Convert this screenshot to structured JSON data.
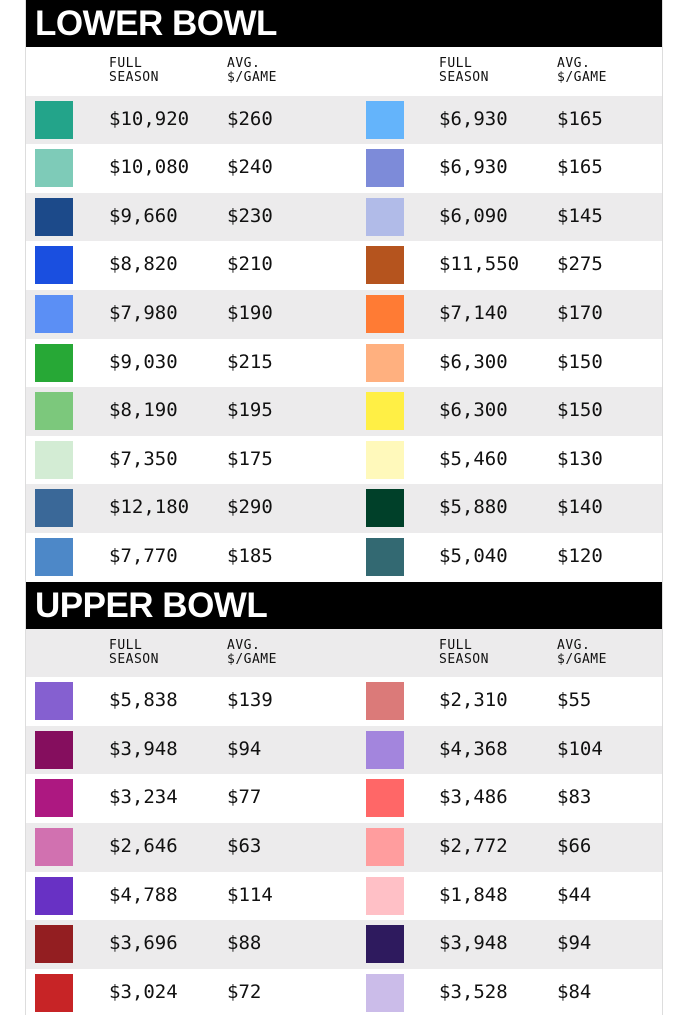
{
  "sections": [
    {
      "title": "LOWER BOWL",
      "headers": [
        [
          "FULL",
          "SEASON"
        ],
        [
          "AVG.",
          "$/GAME"
        ],
        [
          "FULL",
          "SEASON"
        ],
        [
          "AVG.",
          "$/GAME"
        ]
      ],
      "rows": [
        [
          {
            "color": "#23a48a",
            "full_season": "$10,920",
            "avg_per_game": "$260"
          },
          {
            "color": "#64b4fb",
            "full_season": "$6,930",
            "avg_per_game": "$165"
          }
        ],
        [
          {
            "color": "#7ecbb8",
            "full_season": "$10,080",
            "avg_per_game": "$240"
          },
          {
            "color": "#7d8bd9",
            "full_season": "$6,930",
            "avg_per_game": "$165"
          }
        ],
        [
          {
            "color": "#1c4a8a",
            "full_season": "$9,660",
            "avg_per_game": "$230"
          },
          {
            "color": "#b1bbe8",
            "full_season": "$6,090",
            "avg_per_game": "$145"
          }
        ],
        [
          {
            "color": "#1a4fe0",
            "full_season": "$8,820",
            "avg_per_game": "$210"
          },
          {
            "color": "#b5541e",
            "full_season": "$11,550",
            "avg_per_game": "$275"
          }
        ],
        [
          {
            "color": "#5b8ff5",
            "full_season": "$7,980",
            "avg_per_game": "$190"
          },
          {
            "color": "#ff7b34",
            "full_season": "$7,140",
            "avg_per_game": "$170"
          }
        ],
        [
          {
            "color": "#27a836",
            "full_season": "$9,030",
            "avg_per_game": "$215"
          },
          {
            "color": "#ffb07f",
            "full_season": "$6,300",
            "avg_per_game": "$150"
          }
        ],
        [
          {
            "color": "#7cc87c",
            "full_season": "$8,190",
            "avg_per_game": "$195"
          },
          {
            "color": "#ffef45",
            "full_season": "$6,300",
            "avg_per_game": "$150"
          }
        ],
        [
          {
            "color": "#d3ecd4",
            "full_season": "$7,350",
            "avg_per_game": "$175"
          },
          {
            "color": "#fff9bb",
            "full_season": "$5,460",
            "avg_per_game": "$130"
          }
        ],
        [
          {
            "color": "#3a6898",
            "full_season": "$12,180",
            "avg_per_game": "$290"
          },
          {
            "color": "#004029",
            "full_season": "$5,880",
            "avg_per_game": "$140"
          }
        ],
        [
          {
            "color": "#4d88c8",
            "full_season": "$7,770",
            "avg_per_game": "$185"
          },
          {
            "color": "#336972",
            "full_season": "$5,040",
            "avg_per_game": "$120"
          }
        ]
      ]
    },
    {
      "title": "UPPER BOWL",
      "headers": [
        [
          "FULL",
          "SEASON"
        ],
        [
          "AVG.",
          "$/GAME"
        ],
        [
          "FULL",
          "SEASON"
        ],
        [
          "AVG.",
          "$/GAME"
        ]
      ],
      "rows": [
        [
          {
            "color": "#8560d0",
            "full_season": "$5,838",
            "avg_per_game": "$139"
          },
          {
            "color": "#db7a79",
            "full_season": "$2,310",
            "avg_per_game": "$55"
          }
        ],
        [
          {
            "color": "#850e5e",
            "full_season": "$3,948",
            "avg_per_game": "$94"
          },
          {
            "color": "#a385dd",
            "full_season": "$4,368",
            "avg_per_game": "$104"
          }
        ],
        [
          {
            "color": "#ad1881",
            "full_season": "$3,234",
            "avg_per_game": "$77"
          },
          {
            "color": "#ff6767",
            "full_season": "$3,486",
            "avg_per_game": "$83"
          }
        ],
        [
          {
            "color": "#d171b0",
            "full_season": "$2,646",
            "avg_per_game": "$63"
          },
          {
            "color": "#ff9d9e",
            "full_season": "$2,772",
            "avg_per_game": "$66"
          }
        ],
        [
          {
            "color": "#6831c4",
            "full_season": "$4,788",
            "avg_per_game": "$114"
          },
          {
            "color": "#ffc0c6",
            "full_season": "$1,848",
            "avg_per_game": "$44"
          }
        ],
        [
          {
            "color": "#931e21",
            "full_season": "$3,696",
            "avg_per_game": "$88"
          },
          {
            "color": "#2e1a5e",
            "full_season": "$3,948",
            "avg_per_game": "$94"
          }
        ],
        [
          {
            "color": "#c72426",
            "full_season": "$3,024",
            "avg_per_game": "$72"
          },
          {
            "color": "#cbbce9",
            "full_season": "$3,528",
            "avg_per_game": "$84"
          }
        ]
      ]
    }
  ]
}
